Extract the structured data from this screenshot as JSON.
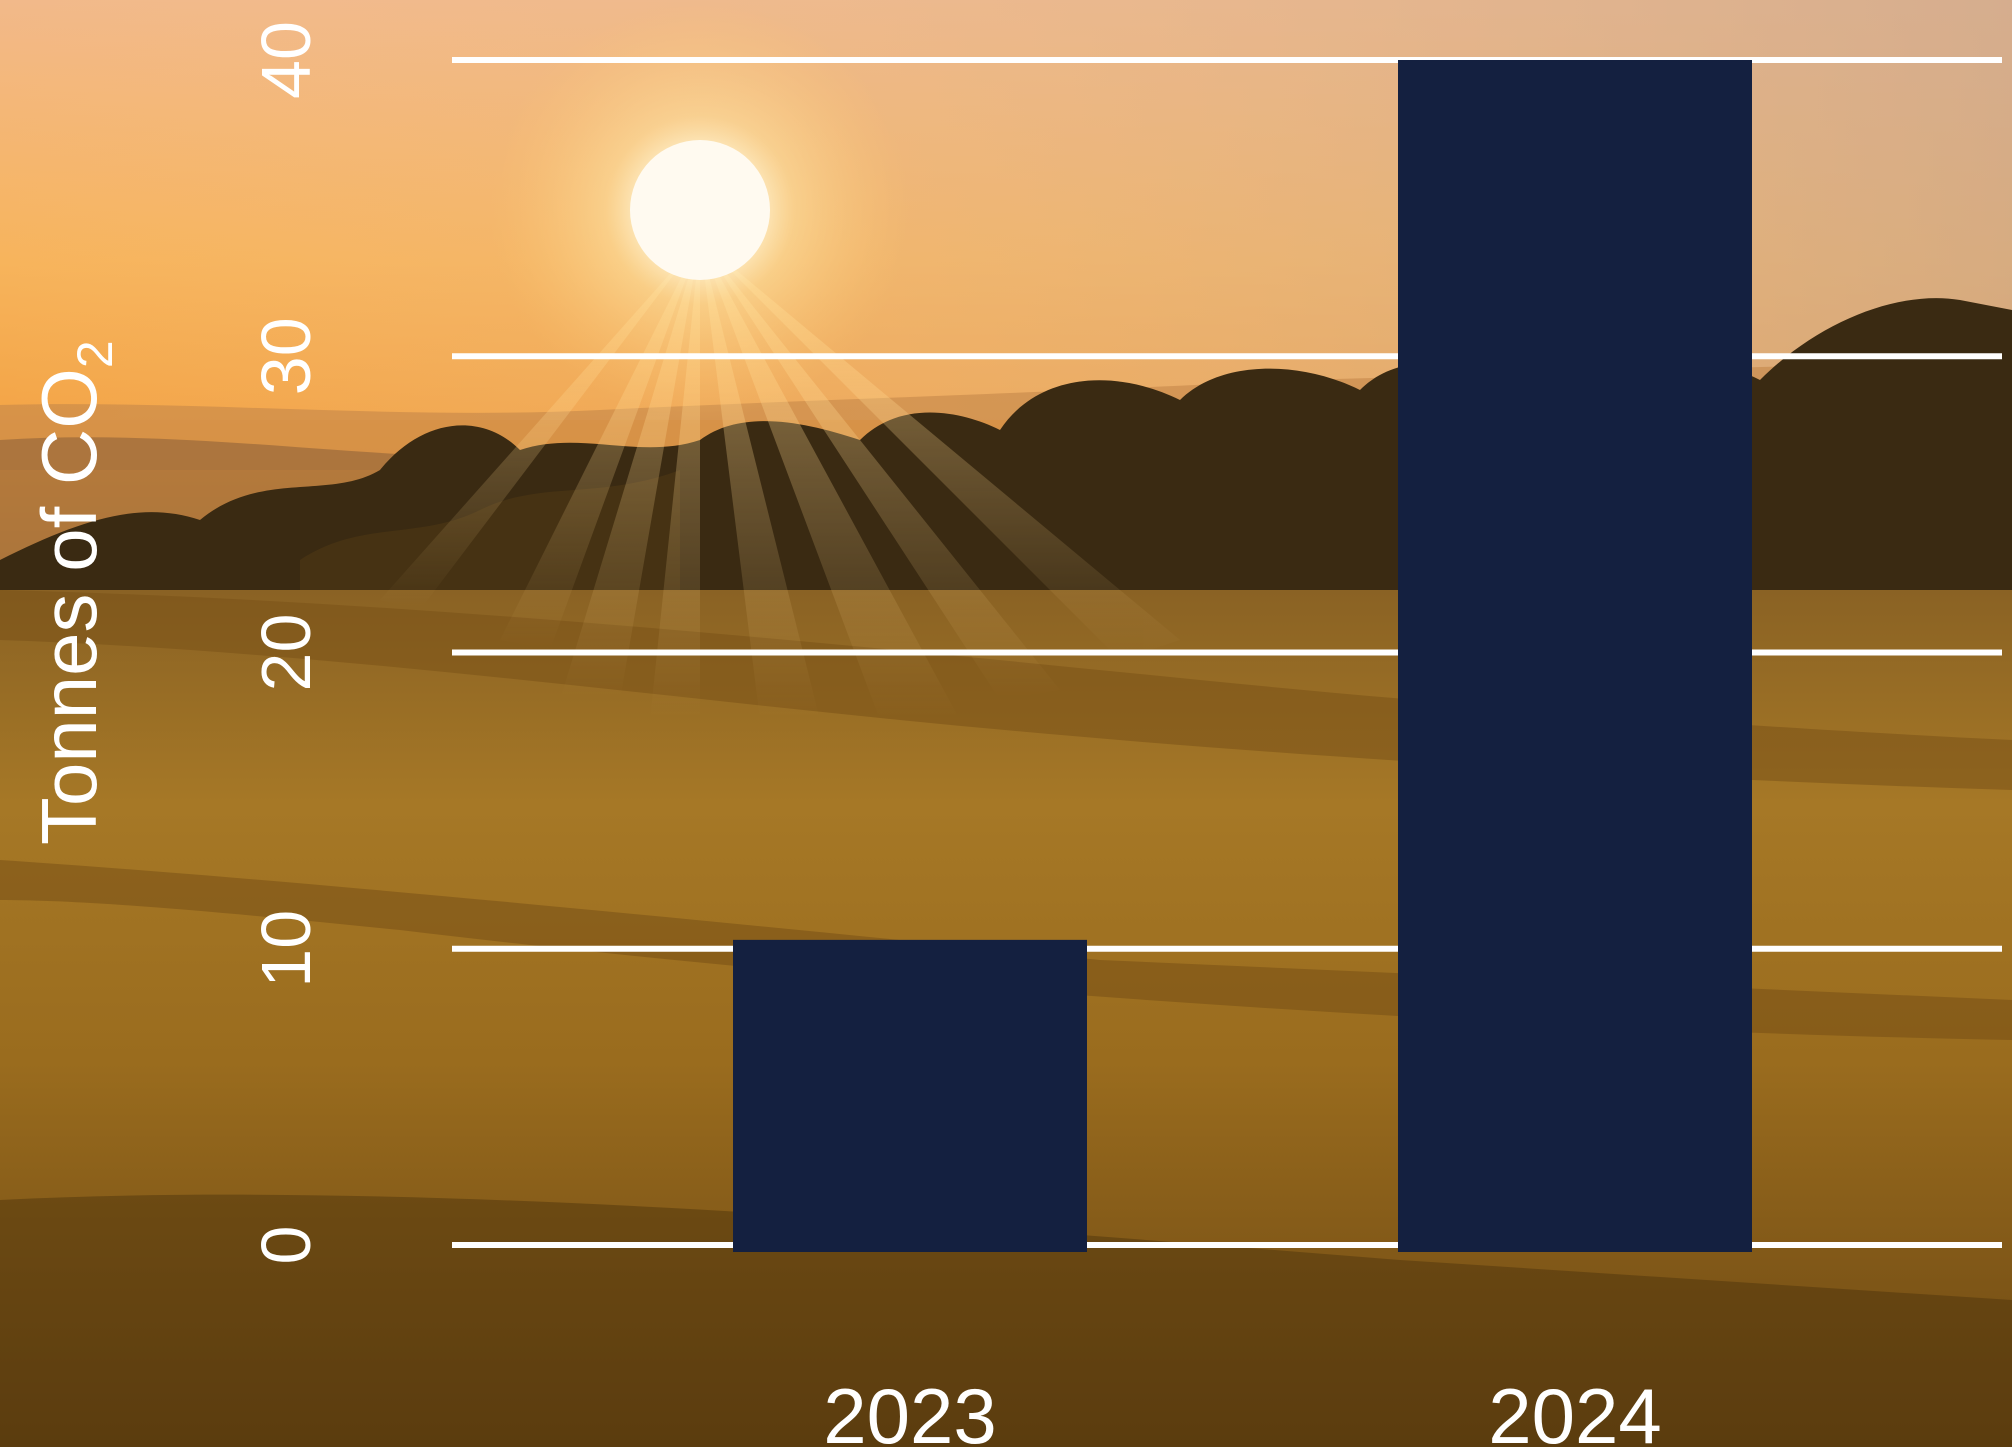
{
  "chart_data": {
    "type": "bar",
    "categories": [
      "2023",
      "2024"
    ],
    "values": [
      10.3,
      40
    ],
    "ylabel": "Tonnes of CO",
    "ylabel_subscript": "2",
    "ylim": [
      0,
      40
    ],
    "yticks": [
      0,
      10,
      20,
      30,
      40
    ],
    "grid": true,
    "bar_color": "#142040",
    "grid_color": "#ffffff",
    "text_color": "#ffffff"
  },
  "background": {
    "description_icon": "sunset-field-photo",
    "sky_color": "#f6b060",
    "sun_color": "#fff6dc",
    "field_color": "#a87420"
  }
}
